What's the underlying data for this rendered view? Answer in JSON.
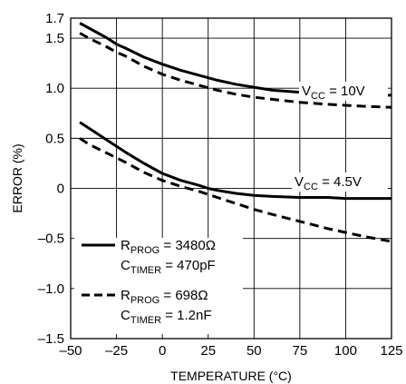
{
  "chart_data": {
    "type": "line",
    "xlabel": "TEMPERATURE (°C)",
    "ylabel": "ERROR (%)",
    "xlim": [
      -50,
      125
    ],
    "ylim": [
      -1.5,
      1.7
    ],
    "xticks": [
      -50,
      -25,
      0,
      25,
      50,
      75,
      100,
      125
    ],
    "xtick_labels": [
      "–50",
      "–25",
      "0",
      "25",
      "50",
      "75",
      "100",
      "125"
    ],
    "yticks": [
      1.7,
      1.5,
      1.0,
      0.5,
      0,
      -0.5,
      -1.0,
      -1.5
    ],
    "ytick_labels": [
      "1.7",
      "1.5",
      "1.0",
      "0.5",
      "0",
      "–0.5",
      "–1.0",
      "–1.5"
    ],
    "grid": true,
    "annotations": [
      {
        "main": "V",
        "sub": "CC",
        "rest": " = 10V"
      },
      {
        "main": "V",
        "sub": "CC",
        "rest": " = 4.5V"
      }
    ],
    "legend": [
      {
        "style": "solid",
        "line1": {
          "main": "R",
          "sub": "PROG",
          "rest": " = 3480Ω"
        },
        "line2": {
          "main": "C",
          "sub": "TIMER",
          "rest": " = 470pF"
        }
      },
      {
        "style": "dashed",
        "line1": {
          "main": "R",
          "sub": "PROG",
          "rest": " = 698Ω"
        },
        "line2": {
          "main": "C",
          "sub": "TIMER",
          "rest": " = 1.2nF"
        }
      }
    ],
    "series": [
      {
        "group": "VCC = 10V",
        "style": "solid",
        "x": [
          -45,
          -40,
          -35,
          -30,
          -25,
          -20,
          -10,
          0,
          10,
          20,
          30,
          40,
          50,
          60,
          75,
          90,
          100,
          110,
          125
        ],
        "y": [
          1.65,
          1.6,
          1.55,
          1.5,
          1.44,
          1.4,
          1.31,
          1.24,
          1.18,
          1.13,
          1.08,
          1.04,
          1.01,
          0.98,
          0.96,
          0.94,
          0.93,
          0.93,
          0.93
        ]
      },
      {
        "group": "VCC = 10V",
        "style": "dashed",
        "x": [
          -45,
          -40,
          -30,
          -25,
          -20,
          -10,
          0,
          10,
          20,
          30,
          40,
          50,
          60,
          75,
          90,
          100,
          110,
          125
        ],
        "y": [
          1.55,
          1.5,
          1.41,
          1.36,
          1.32,
          1.22,
          1.14,
          1.08,
          1.03,
          0.98,
          0.94,
          0.91,
          0.89,
          0.86,
          0.84,
          0.83,
          0.82,
          0.81
        ]
      },
      {
        "group": "VCC = 4.5V",
        "style": "solid",
        "x": [
          -45,
          -40,
          -30,
          -20,
          -10,
          0,
          10,
          20,
          25,
          30,
          40,
          50,
          60,
          75,
          90,
          100,
          110,
          125
        ],
        "y": [
          0.66,
          0.6,
          0.48,
          0.36,
          0.25,
          0.15,
          0.08,
          0.03,
          0.0,
          -0.02,
          -0.05,
          -0.07,
          -0.08,
          -0.09,
          -0.09,
          -0.1,
          -0.1,
          -0.1
        ]
      },
      {
        "group": "VCC = 4.5V",
        "style": "dashed",
        "x": [
          -45,
          -40,
          -30,
          -20,
          -10,
          0,
          10,
          20,
          30,
          40,
          50,
          60,
          75,
          90,
          100,
          110,
          125
        ],
        "y": [
          0.5,
          0.44,
          0.35,
          0.26,
          0.16,
          0.08,
          0.02,
          -0.03,
          -0.09,
          -0.15,
          -0.21,
          -0.26,
          -0.33,
          -0.4,
          -0.44,
          -0.48,
          -0.53
        ]
      }
    ]
  }
}
